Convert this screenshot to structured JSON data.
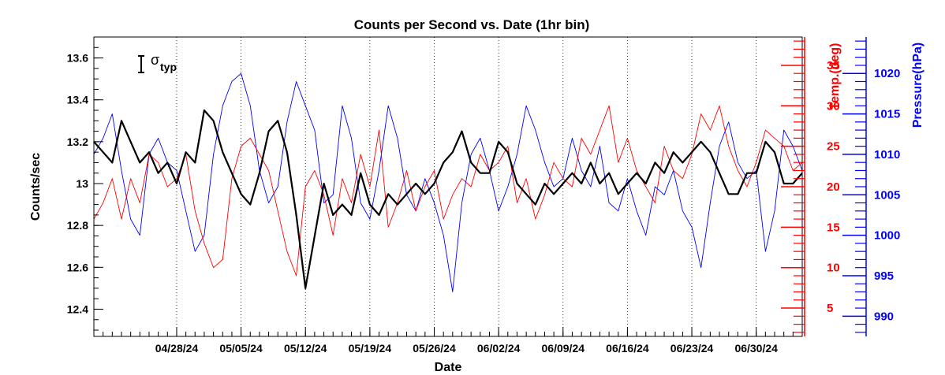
{
  "chart_data": {
    "type": "line",
    "title": "Counts per Second vs. Date (1hr bin)",
    "xlabel": "Date",
    "ylabel": "Counts/sec",
    "y2label": "Temp.(deg)",
    "y3label": "Pressure(hPa)",
    "annotation": {
      "symbol": "σ",
      "subscript": "typ"
    },
    "x_range": [
      "2024-04-19",
      "2024-07-05"
    ],
    "x_ticks": [
      {
        "date": "2024-04-28",
        "label": "04/28/24"
      },
      {
        "date": "2024-05-05",
        "label": "05/05/24"
      },
      {
        "date": "2024-05-12",
        "label": "05/12/24"
      },
      {
        "date": "2024-05-19",
        "label": "05/19/24"
      },
      {
        "date": "2024-05-26",
        "label": "05/26/24"
      },
      {
        "date": "2024-06-02",
        "label": "06/02/24"
      },
      {
        "date": "2024-06-09",
        "label": "06/09/24"
      },
      {
        "date": "2024-06-16",
        "label": "06/16/24"
      },
      {
        "date": "2024-06-23",
        "label": "06/23/24"
      },
      {
        "date": "2024-06-30",
        "label": "06/30/24"
      }
    ],
    "y_left": {
      "range": [
        12.27,
        13.7
      ],
      "ticks": [
        12.4,
        12.6,
        12.8,
        13,
        13.2,
        13.4,
        13.6
      ],
      "tick_labels": [
        "12.4",
        "12.6",
        "12.8",
        "13",
        "13.2",
        "13.4",
        "13.6"
      ],
      "color": "#000000"
    },
    "y_temp": {
      "range": [
        1.5,
        38.5
      ],
      "ticks": [
        5,
        10,
        15,
        20,
        25,
        30,
        35
      ],
      "tick_labels": [
        "5",
        "10",
        "15",
        "20",
        "25",
        "30",
        "35"
      ],
      "color": "#ff0000"
    },
    "y_pressure": {
      "range": [
        987.5,
        1024.5
      ],
      "ticks": [
        990,
        995,
        1000,
        1005,
        1010,
        1015,
        1020
      ],
      "tick_labels": [
        "990",
        "995",
        "1000",
        "1005",
        "1010",
        "1015",
        "1020"
      ],
      "color": "#0000ff"
    },
    "grid": "vertical dotted at date ticks",
    "series": [
      {
        "name": "Counts/sec",
        "axis": "left",
        "color": "#000000",
        "points": [
          [
            "2024-04-19",
            13.2
          ],
          [
            "2024-04-20",
            13.15
          ],
          [
            "2024-04-21",
            13.1
          ],
          [
            "2024-04-22",
            13.3
          ],
          [
            "2024-04-23",
            13.2
          ],
          [
            "2024-04-24",
            13.1
          ],
          [
            "2024-04-25",
            13.15
          ],
          [
            "2024-04-26",
            13.05
          ],
          [
            "2024-04-27",
            13.1
          ],
          [
            "2024-04-28",
            13.0
          ],
          [
            "2024-04-29",
            13.15
          ],
          [
            "2024-04-30",
            13.1
          ],
          [
            "2024-05-01",
            13.35
          ],
          [
            "2024-05-02",
            13.3
          ],
          [
            "2024-05-03",
            13.15
          ],
          [
            "2024-05-04",
            13.05
          ],
          [
            "2024-05-05",
            12.95
          ],
          [
            "2024-05-06",
            12.9
          ],
          [
            "2024-05-07",
            13.05
          ],
          [
            "2024-05-08",
            13.25
          ],
          [
            "2024-05-09",
            13.3
          ],
          [
            "2024-05-10",
            13.15
          ],
          [
            "2024-05-11",
            12.85
          ],
          [
            "2024-05-12",
            12.5
          ],
          [
            "2024-05-13",
            12.75
          ],
          [
            "2024-05-14",
            13.0
          ],
          [
            "2024-05-15",
            12.85
          ],
          [
            "2024-05-16",
            12.9
          ],
          [
            "2024-05-17",
            12.85
          ],
          [
            "2024-05-18",
            13.05
          ],
          [
            "2024-05-19",
            12.9
          ],
          [
            "2024-05-20",
            12.85
          ],
          [
            "2024-05-21",
            12.95
          ],
          [
            "2024-05-22",
            12.9
          ],
          [
            "2024-05-23",
            12.95
          ],
          [
            "2024-05-24",
            13.0
          ],
          [
            "2024-05-25",
            12.95
          ],
          [
            "2024-05-26",
            13.0
          ],
          [
            "2024-05-27",
            13.1
          ],
          [
            "2024-05-28",
            13.15
          ],
          [
            "2024-05-29",
            13.25
          ],
          [
            "2024-05-30",
            13.1
          ],
          [
            "2024-05-31",
            13.05
          ],
          [
            "2024-06-01",
            13.05
          ],
          [
            "2024-06-02",
            13.2
          ],
          [
            "2024-06-03",
            13.15
          ],
          [
            "2024-06-04",
            13.0
          ],
          [
            "2024-06-05",
            12.95
          ],
          [
            "2024-06-06",
            12.9
          ],
          [
            "2024-06-07",
            13.0
          ],
          [
            "2024-06-08",
            12.95
          ],
          [
            "2024-06-09",
            13.0
          ],
          [
            "2024-06-10",
            13.05
          ],
          [
            "2024-06-11",
            13.0
          ],
          [
            "2024-06-12",
            13.1
          ],
          [
            "2024-06-13",
            13.0
          ],
          [
            "2024-06-14",
            13.05
          ],
          [
            "2024-06-15",
            12.95
          ],
          [
            "2024-06-16",
            13.0
          ],
          [
            "2024-06-17",
            13.05
          ],
          [
            "2024-06-18",
            13.0
          ],
          [
            "2024-06-19",
            13.1
          ],
          [
            "2024-06-20",
            13.05
          ],
          [
            "2024-06-21",
            13.15
          ],
          [
            "2024-06-22",
            13.1
          ],
          [
            "2024-06-23",
            13.15
          ],
          [
            "2024-06-24",
            13.2
          ],
          [
            "2024-06-25",
            13.15
          ],
          [
            "2024-06-26",
            13.05
          ],
          [
            "2024-06-27",
            12.95
          ],
          [
            "2024-06-28",
            12.95
          ],
          [
            "2024-06-29",
            13.05
          ],
          [
            "2024-06-30",
            13.05
          ],
          [
            "2024-07-01",
            13.2
          ],
          [
            "2024-07-02",
            13.15
          ],
          [
            "2024-07-03",
            13.0
          ],
          [
            "2024-07-04",
            13.0
          ],
          [
            "2024-07-05",
            13.05
          ]
        ]
      },
      {
        "name": "Temp.(deg)",
        "axis": "temp",
        "color": "#ff0000",
        "points": [
          [
            "2024-04-19",
            16
          ],
          [
            "2024-04-20",
            18
          ],
          [
            "2024-04-21",
            21
          ],
          [
            "2024-04-22",
            16
          ],
          [
            "2024-04-23",
            21
          ],
          [
            "2024-04-24",
            18
          ],
          [
            "2024-04-25",
            24
          ],
          [
            "2024-04-26",
            23
          ],
          [
            "2024-04-27",
            20
          ],
          [
            "2024-04-28",
            21
          ],
          [
            "2024-04-29",
            24
          ],
          [
            "2024-04-30",
            17
          ],
          [
            "2024-05-01",
            13
          ],
          [
            "2024-05-02",
            10
          ],
          [
            "2024-05-03",
            11
          ],
          [
            "2024-05-04",
            21
          ],
          [
            "2024-05-05",
            25
          ],
          [
            "2024-05-06",
            26
          ],
          [
            "2024-05-07",
            24
          ],
          [
            "2024-05-08",
            22
          ],
          [
            "2024-05-09",
            17
          ],
          [
            "2024-05-10",
            12
          ],
          [
            "2024-05-11",
            9
          ],
          [
            "2024-05-12",
            20
          ],
          [
            "2024-05-13",
            22
          ],
          [
            "2024-05-14",
            19
          ],
          [
            "2024-05-15",
            14
          ],
          [
            "2024-05-16",
            21
          ],
          [
            "2024-05-17",
            18
          ],
          [
            "2024-05-18",
            24
          ],
          [
            "2024-05-19",
            20
          ],
          [
            "2024-05-20",
            27
          ],
          [
            "2024-05-21",
            15
          ],
          [
            "2024-05-22",
            18
          ],
          [
            "2024-05-23",
            22
          ],
          [
            "2024-05-24",
            17
          ],
          [
            "2024-05-25",
            20
          ],
          [
            "2024-05-26",
            22
          ],
          [
            "2024-05-27",
            16
          ],
          [
            "2024-05-28",
            19
          ],
          [
            "2024-05-29",
            21
          ],
          [
            "2024-05-30",
            20
          ],
          [
            "2024-05-31",
            24
          ],
          [
            "2024-06-01",
            22
          ],
          [
            "2024-06-02",
            23
          ],
          [
            "2024-06-03",
            25
          ],
          [
            "2024-06-04",
            18
          ],
          [
            "2024-06-05",
            21
          ],
          [
            "2024-06-06",
            16
          ],
          [
            "2024-06-07",
            19
          ],
          [
            "2024-06-08",
            23
          ],
          [
            "2024-06-09",
            21
          ],
          [
            "2024-06-10",
            20
          ],
          [
            "2024-06-11",
            26
          ],
          [
            "2024-06-12",
            24
          ],
          [
            "2024-06-13",
            27
          ],
          [
            "2024-06-14",
            30
          ],
          [
            "2024-06-15",
            23
          ],
          [
            "2024-06-16",
            26
          ],
          [
            "2024-06-17",
            22
          ],
          [
            "2024-06-18",
            20
          ],
          [
            "2024-06-19",
            18
          ],
          [
            "2024-06-20",
            25
          ],
          [
            "2024-06-21",
            22
          ],
          [
            "2024-06-22",
            21
          ],
          [
            "2024-06-23",
            24
          ],
          [
            "2024-06-24",
            29
          ],
          [
            "2024-06-25",
            27
          ],
          [
            "2024-06-26",
            30
          ],
          [
            "2024-06-27",
            25
          ],
          [
            "2024-06-28",
            22
          ],
          [
            "2024-06-29",
            20
          ],
          [
            "2024-06-30",
            23
          ],
          [
            "2024-07-01",
            27
          ],
          [
            "2024-07-02",
            26
          ],
          [
            "2024-07-03",
            25
          ],
          [
            "2024-07-04",
            22
          ],
          [
            "2024-07-05",
            23
          ]
        ]
      },
      {
        "name": "Pressure(hPa)",
        "axis": "pressure",
        "color": "#0000ff",
        "points": [
          [
            "2024-04-19",
            1010
          ],
          [
            "2024-04-20",
            1012
          ],
          [
            "2024-04-21",
            1015
          ],
          [
            "2024-04-22",
            1008
          ],
          [
            "2024-04-23",
            1002
          ],
          [
            "2024-04-24",
            1000
          ],
          [
            "2024-04-25",
            1010
          ],
          [
            "2024-04-26",
            1012
          ],
          [
            "2024-04-27",
            1009
          ],
          [
            "2024-04-28",
            1008
          ],
          [
            "2024-04-29",
            1003
          ],
          [
            "2024-04-30",
            998
          ],
          [
            "2024-05-01",
            1000
          ],
          [
            "2024-05-02",
            1010
          ],
          [
            "2024-05-03",
            1016
          ],
          [
            "2024-05-04",
            1019
          ],
          [
            "2024-05-05",
            1020
          ],
          [
            "2024-05-06",
            1016
          ],
          [
            "2024-05-07",
            1008
          ],
          [
            "2024-05-08",
            1004
          ],
          [
            "2024-05-09",
            1006
          ],
          [
            "2024-05-10",
            1014
          ],
          [
            "2024-05-11",
            1019
          ],
          [
            "2024-05-12",
            1016
          ],
          [
            "2024-05-13",
            1013
          ],
          [
            "2024-05-14",
            1004
          ],
          [
            "2024-05-15",
            1005
          ],
          [
            "2024-05-16",
            1016
          ],
          [
            "2024-05-17",
            1012
          ],
          [
            "2024-05-18",
            1004
          ],
          [
            "2024-05-19",
            1002
          ],
          [
            "2024-05-20",
            1008
          ],
          [
            "2024-05-21",
            1016
          ],
          [
            "2024-05-22",
            1012
          ],
          [
            "2024-05-23",
            1005
          ],
          [
            "2024-05-24",
            1003
          ],
          [
            "2024-05-25",
            1007
          ],
          [
            "2024-05-26",
            1004
          ],
          [
            "2024-05-27",
            1000
          ],
          [
            "2024-05-28",
            993
          ],
          [
            "2024-05-29",
            1004
          ],
          [
            "2024-05-30",
            1010
          ],
          [
            "2024-05-31",
            1012
          ],
          [
            "2024-06-01",
            1008
          ],
          [
            "2024-06-02",
            1003
          ],
          [
            "2024-06-03",
            1006
          ],
          [
            "2024-06-04",
            1010
          ],
          [
            "2024-06-05",
            1016
          ],
          [
            "2024-06-06",
            1013
          ],
          [
            "2024-06-07",
            1009
          ],
          [
            "2024-06-08",
            1006
          ],
          [
            "2024-06-09",
            1007
          ],
          [
            "2024-06-10",
            1012
          ],
          [
            "2024-06-11",
            1008
          ],
          [
            "2024-06-12",
            1006
          ],
          [
            "2024-06-13",
            1011
          ],
          [
            "2024-06-14",
            1004
          ],
          [
            "2024-06-15",
            1003
          ],
          [
            "2024-06-16",
            1007
          ],
          [
            "2024-06-17",
            1003
          ],
          [
            "2024-06-18",
            1000
          ],
          [
            "2024-06-19",
            1006
          ],
          [
            "2024-06-20",
            1005
          ],
          [
            "2024-06-21",
            1008
          ],
          [
            "2024-06-22",
            1003
          ],
          [
            "2024-06-23",
            1001
          ],
          [
            "2024-06-24",
            996
          ],
          [
            "2024-06-25",
            1004
          ],
          [
            "2024-06-26",
            1011
          ],
          [
            "2024-06-27",
            1014
          ],
          [
            "2024-06-28",
            1009
          ],
          [
            "2024-06-29",
            1007
          ],
          [
            "2024-06-30",
            1008
          ],
          [
            "2024-07-01",
            998
          ],
          [
            "2024-07-02",
            1003
          ],
          [
            "2024-07-03",
            1013
          ],
          [
            "2024-07-04",
            1011
          ],
          [
            "2024-07-05",
            1008
          ]
        ]
      }
    ]
  }
}
